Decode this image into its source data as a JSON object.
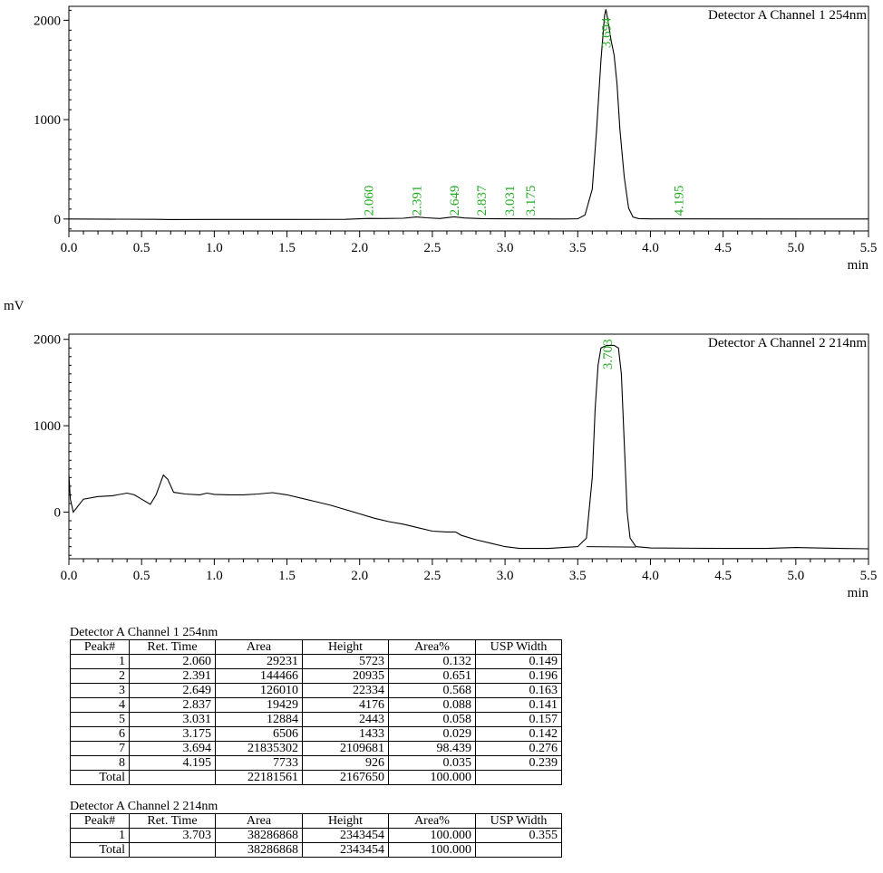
{
  "unit_label": "mV",
  "chart_data": [
    {
      "type": "line",
      "legend": "Detector A Channel 1 254nm",
      "xlabel": "min",
      "xlim": [
        0.0,
        5.5
      ],
      "ylim": [
        -120,
        2140
      ],
      "x_ticks": [
        "0.0",
        "0.5",
        "1.0",
        "1.5",
        "2.0",
        "2.5",
        "3.0",
        "3.5",
        "4.0",
        "4.5",
        "5.0",
        "5.5"
      ],
      "y_ticks": [
        {
          "v": 0,
          "label": "0"
        },
        {
          "v": 1000,
          "label": "1000"
        },
        {
          "v": 2000,
          "label": "2000"
        }
      ],
      "series": [
        {
          "points": [
            [
              0.0,
              0
            ],
            [
              0.6,
              -3
            ],
            [
              0.7,
              -5
            ],
            [
              1.0,
              -4
            ],
            [
              1.5,
              -4
            ],
            [
              1.9,
              -3
            ],
            [
              2.0,
              2
            ],
            [
              2.06,
              6
            ],
            [
              2.15,
              5
            ],
            [
              2.3,
              8
            ],
            [
              2.39,
              20
            ],
            [
              2.46,
              12
            ],
            [
              2.55,
              5
            ],
            [
              2.649,
              22
            ],
            [
              2.72,
              10
            ],
            [
              2.837,
              4
            ],
            [
              2.95,
              2
            ],
            [
              3.031,
              2
            ],
            [
              3.175,
              1
            ],
            [
              3.4,
              0
            ],
            [
              3.5,
              2
            ],
            [
              3.55,
              40
            ],
            [
              3.6,
              300
            ],
            [
              3.63,
              900
            ],
            [
              3.66,
              1600
            ],
            [
              3.685,
              2050
            ],
            [
              3.694,
              2110
            ],
            [
              3.71,
              1980
            ],
            [
              3.73,
              1790
            ],
            [
              3.75,
              1650
            ],
            [
              3.77,
              1360
            ],
            [
              3.79,
              900
            ],
            [
              3.82,
              420
            ],
            [
              3.85,
              110
            ],
            [
              3.88,
              20
            ],
            [
              3.92,
              4
            ],
            [
              4.0,
              1
            ],
            [
              4.195,
              1
            ],
            [
              5.0,
              0
            ],
            [
              5.5,
              0
            ]
          ]
        }
      ],
      "peaks": [
        {
          "time": 2.06,
          "label": "2.060"
        },
        {
          "time": 2.391,
          "label": "2.391"
        },
        {
          "time": 2.649,
          "label": "2.649"
        },
        {
          "time": 2.837,
          "label": "2.837"
        },
        {
          "time": 3.031,
          "label": "3.031"
        },
        {
          "time": 3.175,
          "label": "3.175"
        },
        {
          "time": 3.694,
          "label": "3.694"
        },
        {
          "time": 4.195,
          "label": "4.195"
        }
      ]
    },
    {
      "type": "line",
      "legend": "Detector A Channel 2 214nm",
      "xlabel": "min",
      "xlim": [
        0.0,
        5.5
      ],
      "ylim": [
        -540,
        2060
      ],
      "x_ticks": [
        "0.0",
        "0.5",
        "1.0",
        "1.5",
        "2.0",
        "2.5",
        "3.0",
        "3.5",
        "4.0",
        "4.5",
        "5.0",
        "5.5"
      ],
      "y_ticks": [
        {
          "v": 0,
          "label": "0"
        },
        {
          "v": 1000,
          "label": "1000"
        },
        {
          "v": 2000,
          "label": "2000"
        }
      ],
      "series": [
        {
          "points": [
            [
              0.0,
              430
            ],
            [
              0.01,
              150
            ],
            [
              0.03,
              0
            ],
            [
              0.1,
              150
            ],
            [
              0.2,
              180
            ],
            [
              0.3,
              190
            ],
            [
              0.4,
              220
            ],
            [
              0.45,
              200
            ],
            [
              0.5,
              150
            ],
            [
              0.56,
              90
            ],
            [
              0.6,
              200
            ],
            [
              0.65,
              430
            ],
            [
              0.68,
              380
            ],
            [
              0.72,
              230
            ],
            [
              0.8,
              210
            ],
            [
              0.9,
              200
            ],
            [
              0.95,
              220
            ],
            [
              1.0,
              205
            ],
            [
              1.1,
              200
            ],
            [
              1.2,
              200
            ],
            [
              1.3,
              210
            ],
            [
              1.4,
              225
            ],
            [
              1.5,
              200
            ],
            [
              1.6,
              160
            ],
            [
              1.7,
              120
            ],
            [
              1.8,
              80
            ],
            [
              1.9,
              30
            ],
            [
              2.0,
              -20
            ],
            [
              2.1,
              -70
            ],
            [
              2.2,
              -110
            ],
            [
              2.3,
              -140
            ],
            [
              2.4,
              -180
            ],
            [
              2.5,
              -220
            ],
            [
              2.6,
              -230
            ],
            [
              2.66,
              -230
            ],
            [
              2.7,
              -270
            ],
            [
              2.8,
              -320
            ],
            [
              2.9,
              -360
            ],
            [
              3.0,
              -400
            ],
            [
              3.1,
              -420
            ],
            [
              3.2,
              -420
            ],
            [
              3.3,
              -420
            ],
            [
              3.4,
              -410
            ],
            [
              3.5,
              -400
            ],
            [
              3.56,
              -300
            ],
            [
              3.6,
              400
            ],
            [
              3.62,
              1200
            ],
            [
              3.64,
              1700
            ],
            [
              3.66,
              1900
            ],
            [
              3.7,
              1930
            ],
            [
              3.75,
              1930
            ],
            [
              3.78,
              1900
            ],
            [
              3.8,
              1600
            ],
            [
              3.82,
              800
            ],
            [
              3.84,
              0
            ],
            [
              3.86,
              -300
            ],
            [
              3.9,
              -400
            ],
            [
              4.0,
              -415
            ],
            [
              4.5,
              -420
            ],
            [
              4.8,
              -420
            ],
            [
              5.0,
              -410
            ],
            [
              5.3,
              -420
            ],
            [
              5.5,
              -425
            ]
          ]
        }
      ],
      "baseline": [
        [
          3.56,
          -400
        ],
        [
          3.9,
          -405
        ]
      ],
      "peaks": [
        {
          "time": 3.703,
          "label": "3.703"
        }
      ]
    }
  ],
  "tables": [
    {
      "title": "Detector A Channel 1 254nm",
      "headers": [
        "Peak#",
        "Ret. Time",
        "Area",
        "Height",
        "Area%",
        "USP Width"
      ],
      "rows": [
        [
          "1",
          "2.060",
          "29231",
          "5723",
          "0.132",
          "0.149"
        ],
        [
          "2",
          "2.391",
          "144466",
          "20935",
          "0.651",
          "0.196"
        ],
        [
          "3",
          "2.649",
          "126010",
          "22334",
          "0.568",
          "0.163"
        ],
        [
          "4",
          "2.837",
          "19429",
          "4176",
          "0.088",
          "0.141"
        ],
        [
          "5",
          "3.031",
          "12884",
          "2443",
          "0.058",
          "0.157"
        ],
        [
          "6",
          "3.175",
          "6506",
          "1433",
          "0.029",
          "0.142"
        ],
        [
          "7",
          "3.694",
          "21835302",
          "2109681",
          "98.439",
          "0.276"
        ],
        [
          "8",
          "4.195",
          "7733",
          "926",
          "0.035",
          "0.239"
        ]
      ],
      "total": [
        "Total",
        "",
        "22181561",
        "2167650",
        "100.000",
        ""
      ]
    },
    {
      "title": "Detector A Channel 2 214nm",
      "headers": [
        "Peak#",
        "Ret. Time",
        "Area",
        "Height",
        "Area%",
        "USP Width"
      ],
      "rows": [
        [
          "1",
          "3.703",
          "38286868",
          "2343454",
          "100.000",
          "0.355"
        ]
      ],
      "total": [
        "Total",
        "",
        "38286868",
        "2343454",
        "100.000",
        ""
      ]
    }
  ]
}
